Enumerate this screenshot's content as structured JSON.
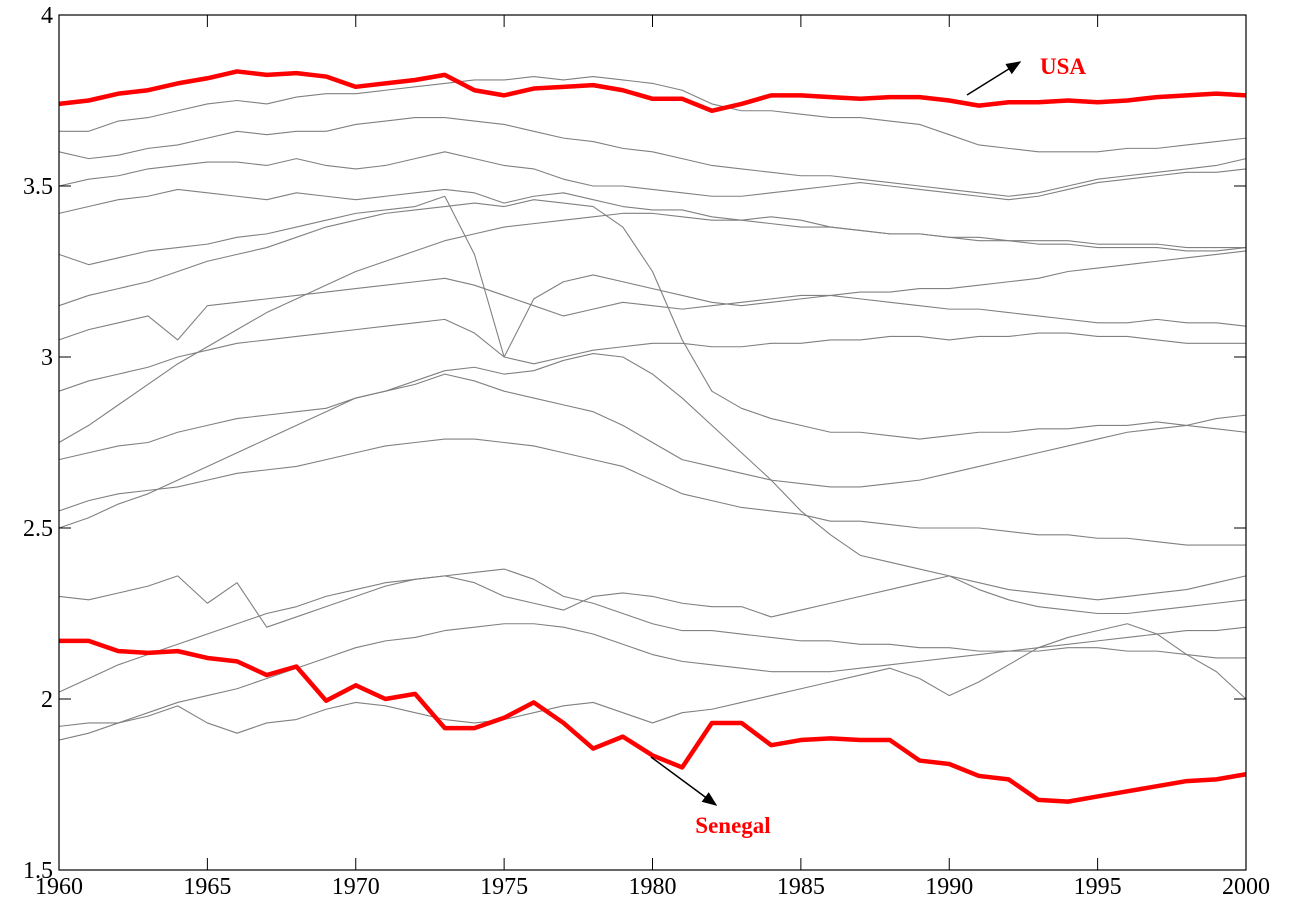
{
  "chart_data": {
    "type": "line",
    "x": [
      1960,
      1961,
      1962,
      1963,
      1964,
      1965,
      1966,
      1967,
      1968,
      1969,
      1970,
      1971,
      1972,
      1973,
      1974,
      1975,
      1976,
      1977,
      1978,
      1979,
      1980,
      1981,
      1982,
      1983,
      1984,
      1985,
      1986,
      1987,
      1988,
      1989,
      1990,
      1991,
      1992,
      1993,
      1994,
      1995,
      1996,
      1997,
      1998,
      1999,
      2000
    ],
    "xlim": [
      1960,
      2000
    ],
    "xticks": [
      1960,
      1965,
      1970,
      1975,
      1980,
      1985,
      1990,
      1995,
      2000
    ],
    "ylim": [
      1.5,
      4
    ],
    "yticks": [
      1.5,
      2,
      2.5,
      3,
      3.5,
      4
    ],
    "annotations": [
      "USA",
      "Senegal"
    ],
    "series": [
      {
        "color": "#808080",
        "values": [
          3.66,
          3.66,
          3.69,
          3.7,
          3.72,
          3.74,
          3.75,
          3.74,
          3.76,
          3.77,
          3.77,
          3.78,
          3.79,
          3.8,
          3.81,
          3.81,
          3.82,
          3.81,
          3.82,
          3.81,
          3.8,
          3.78,
          3.74,
          3.72,
          3.72,
          3.71,
          3.7,
          3.7,
          3.69,
          3.68,
          3.65,
          3.62,
          3.61,
          3.6,
          3.6,
          3.6,
          3.61,
          3.61,
          3.62,
          3.63,
          3.64
        ]
      },
      {
        "color": "#808080",
        "values": [
          3.6,
          3.58,
          3.59,
          3.61,
          3.62,
          3.64,
          3.66,
          3.65,
          3.66,
          3.66,
          3.68,
          3.69,
          3.7,
          3.7,
          3.69,
          3.68,
          3.66,
          3.64,
          3.63,
          3.61,
          3.6,
          3.58,
          3.56,
          3.55,
          3.54,
          3.53,
          3.53,
          3.52,
          3.51,
          3.5,
          3.49,
          3.48,
          3.47,
          3.48,
          3.5,
          3.52,
          3.53,
          3.54,
          3.55,
          3.56,
          3.58
        ]
      },
      {
        "color": "#808080",
        "values": [
          3.5,
          3.52,
          3.53,
          3.55,
          3.56,
          3.57,
          3.57,
          3.56,
          3.58,
          3.56,
          3.55,
          3.56,
          3.58,
          3.6,
          3.58,
          3.56,
          3.55,
          3.52,
          3.5,
          3.5,
          3.49,
          3.48,
          3.47,
          3.47,
          3.48,
          3.49,
          3.5,
          3.51,
          3.5,
          3.49,
          3.48,
          3.47,
          3.46,
          3.47,
          3.49,
          3.51,
          3.52,
          3.53,
          3.54,
          3.54,
          3.55
        ]
      },
      {
        "color": "#808080",
        "values": [
          3.42,
          3.44,
          3.46,
          3.47,
          3.49,
          3.48,
          3.47,
          3.46,
          3.48,
          3.47,
          3.46,
          3.47,
          3.48,
          3.49,
          3.48,
          3.45,
          3.47,
          3.48,
          3.46,
          3.44,
          3.43,
          3.43,
          3.41,
          3.4,
          3.41,
          3.4,
          3.38,
          3.37,
          3.36,
          3.36,
          3.35,
          3.34,
          3.34,
          3.33,
          3.33,
          3.32,
          3.32,
          3.32,
          3.31,
          3.31,
          3.32
        ]
      },
      {
        "color": "#808080",
        "values": [
          3.3,
          3.27,
          3.29,
          3.31,
          3.32,
          3.33,
          3.35,
          3.36,
          3.38,
          3.4,
          3.42,
          3.43,
          3.44,
          3.47,
          3.3,
          3.0,
          3.17,
          3.22,
          3.24,
          3.22,
          3.2,
          3.18,
          3.16,
          3.15,
          3.16,
          3.17,
          3.18,
          3.19,
          3.19,
          3.2,
          3.2,
          3.21,
          3.22,
          3.23,
          3.25,
          3.26,
          3.27,
          3.28,
          3.29,
          3.3,
          3.31
        ]
      },
      {
        "color": "#808080",
        "values": [
          3.15,
          3.18,
          3.2,
          3.22,
          3.25,
          3.28,
          3.3,
          3.32,
          3.35,
          3.38,
          3.4,
          3.42,
          3.43,
          3.44,
          3.45,
          3.44,
          3.46,
          3.45,
          3.44,
          3.38,
          3.25,
          3.05,
          2.9,
          2.85,
          2.82,
          2.8,
          2.78,
          2.78,
          2.77,
          2.76,
          2.77,
          2.78,
          2.78,
          2.79,
          2.79,
          2.8,
          2.8,
          2.81,
          2.8,
          2.79,
          2.78
        ]
      },
      {
        "color": "#808080",
        "values": [
          3.05,
          3.08,
          3.1,
          3.12,
          3.05,
          3.15,
          3.16,
          3.17,
          3.18,
          3.19,
          3.2,
          3.21,
          3.22,
          3.23,
          3.21,
          3.18,
          3.15,
          3.12,
          3.14,
          3.16,
          3.15,
          3.14,
          3.15,
          3.16,
          3.17,
          3.18,
          3.18,
          3.17,
          3.16,
          3.15,
          3.14,
          3.14,
          3.13,
          3.12,
          3.11,
          3.1,
          3.1,
          3.11,
          3.1,
          3.1,
          3.09
        ]
      },
      {
        "color": "#808080",
        "values": [
          2.75,
          2.8,
          2.86,
          2.92,
          2.98,
          3.03,
          3.08,
          3.13,
          3.17,
          3.21,
          3.25,
          3.28,
          3.31,
          3.34,
          3.36,
          3.38,
          3.39,
          3.4,
          3.41,
          3.42,
          3.42,
          3.41,
          3.4,
          3.4,
          3.39,
          3.38,
          3.38,
          3.37,
          3.36,
          3.36,
          3.35,
          3.35,
          3.34,
          3.34,
          3.34,
          3.33,
          3.33,
          3.33,
          3.32,
          3.32,
          3.32
        ]
      },
      {
        "color": "#808080",
        "values": [
          2.9,
          2.93,
          2.95,
          2.97,
          3.0,
          3.02,
          3.04,
          3.05,
          3.06,
          3.07,
          3.08,
          3.09,
          3.1,
          3.11,
          3.07,
          3.0,
          2.98,
          3.0,
          3.02,
          3.03,
          3.04,
          3.04,
          3.03,
          3.03,
          3.04,
          3.04,
          3.05,
          3.05,
          3.06,
          3.06,
          3.05,
          3.06,
          3.06,
          3.07,
          3.07,
          3.06,
          3.06,
          3.05,
          3.04,
          3.04,
          3.04
        ]
      },
      {
        "color": "#808080",
        "values": [
          2.7,
          2.72,
          2.74,
          2.75,
          2.78,
          2.8,
          2.82,
          2.83,
          2.84,
          2.85,
          2.88,
          2.9,
          2.92,
          2.95,
          2.93,
          2.9,
          2.88,
          2.86,
          2.84,
          2.8,
          2.75,
          2.7,
          2.68,
          2.66,
          2.64,
          2.63,
          2.62,
          2.62,
          2.63,
          2.64,
          2.66,
          2.68,
          2.7,
          2.72,
          2.74,
          2.76,
          2.78,
          2.79,
          2.8,
          2.82,
          2.83
        ]
      },
      {
        "color": "#808080",
        "values": [
          2.55,
          2.58,
          2.6,
          2.61,
          2.62,
          2.64,
          2.66,
          2.67,
          2.68,
          2.7,
          2.72,
          2.74,
          2.75,
          2.76,
          2.76,
          2.75,
          2.74,
          2.72,
          2.7,
          2.68,
          2.64,
          2.6,
          2.58,
          2.56,
          2.55,
          2.54,
          2.52,
          2.52,
          2.51,
          2.5,
          2.5,
          2.5,
          2.49,
          2.48,
          2.48,
          2.47,
          2.47,
          2.46,
          2.45,
          2.45,
          2.45
        ]
      },
      {
        "color": "#808080",
        "values": [
          2.3,
          2.29,
          2.31,
          2.33,
          2.36,
          2.28,
          2.34,
          2.21,
          2.24,
          2.27,
          2.3,
          2.33,
          2.35,
          2.36,
          2.34,
          2.3,
          2.28,
          2.26,
          2.3,
          2.31,
          2.3,
          2.28,
          2.27,
          2.27,
          2.24,
          2.26,
          2.28,
          2.3,
          2.32,
          2.34,
          2.36,
          2.34,
          2.32,
          2.31,
          2.3,
          2.29,
          2.3,
          2.31,
          2.32,
          2.34,
          2.36
        ]
      },
      {
        "color": "#808080",
        "values": [
          2.02,
          2.06,
          2.1,
          2.13,
          2.16,
          2.19,
          2.22,
          2.25,
          2.27,
          2.3,
          2.32,
          2.34,
          2.35,
          2.36,
          2.37,
          2.38,
          2.35,
          2.3,
          2.28,
          2.25,
          2.22,
          2.2,
          2.2,
          2.19,
          2.18,
          2.17,
          2.17,
          2.16,
          2.16,
          2.15,
          2.15,
          2.14,
          2.14,
          2.15,
          2.16,
          2.17,
          2.18,
          2.19,
          2.2,
          2.2,
          2.21
        ]
      },
      {
        "color": "#808080",
        "values": [
          1.88,
          1.9,
          1.93,
          1.96,
          1.99,
          2.01,
          2.03,
          2.06,
          2.09,
          2.12,
          2.15,
          2.17,
          2.18,
          2.2,
          2.21,
          2.22,
          2.22,
          2.21,
          2.19,
          2.16,
          2.13,
          2.11,
          2.1,
          2.09,
          2.08,
          2.08,
          2.08,
          2.09,
          2.1,
          2.11,
          2.12,
          2.13,
          2.14,
          2.14,
          2.15,
          2.15,
          2.14,
          2.14,
          2.13,
          2.12,
          2.12
        ]
      },
      {
        "color": "#808080",
        "values": [
          1.92,
          1.93,
          1.93,
          1.95,
          1.98,
          1.93,
          1.9,
          1.93,
          1.94,
          1.97,
          1.99,
          1.98,
          1.96,
          1.94,
          1.93,
          1.94,
          1.96,
          1.98,
          1.99,
          1.96,
          1.93,
          1.96,
          1.97,
          1.99,
          2.01,
          2.03,
          2.05,
          2.07,
          2.09,
          2.06,
          2.01,
          2.05,
          2.1,
          2.15,
          2.18,
          2.2,
          2.22,
          2.19,
          2.13,
          2.08,
          2.0
        ]
      },
      {
        "color": "#808080",
        "values": [
          2.5,
          2.53,
          2.57,
          2.6,
          2.64,
          2.68,
          2.72,
          2.76,
          2.8,
          2.84,
          2.88,
          2.9,
          2.93,
          2.96,
          2.97,
          2.95,
          2.96,
          2.99,
          3.01,
          3.0,
          2.95,
          2.88,
          2.8,
          2.72,
          2.64,
          2.55,
          2.48,
          2.42,
          2.4,
          2.38,
          2.36,
          2.32,
          2.29,
          2.27,
          2.26,
          2.25,
          2.25,
          2.26,
          2.27,
          2.28,
          2.29
        ]
      },
      {
        "color": "#ff0000",
        "values": [
          3.74,
          3.75,
          3.77,
          3.78,
          3.8,
          3.815,
          3.835,
          3.825,
          3.83,
          3.82,
          3.79,
          3.8,
          3.81,
          3.825,
          3.78,
          3.765,
          3.785,
          3.79,
          3.795,
          3.78,
          3.755,
          3.755,
          3.72,
          3.74,
          3.765,
          3.765,
          3.76,
          3.755,
          3.76,
          3.76,
          3.75,
          3.735,
          3.745,
          3.745,
          3.75,
          3.745,
          3.75,
          3.76,
          3.765,
          3.77,
          3.765
        ]
      },
      {
        "color": "#ff0000",
        "values": [
          2.17,
          2.17,
          2.14,
          2.135,
          2.14,
          2.12,
          2.11,
          2.07,
          2.095,
          1.995,
          2.04,
          2.0,
          2.015,
          1.915,
          1.915,
          1.945,
          1.99,
          1.93,
          1.855,
          1.89,
          1.835,
          1.8,
          1.93,
          1.93,
          1.865,
          1.88,
          1.885,
          1.88,
          1.88,
          1.82,
          1.81,
          1.775,
          1.765,
          1.705,
          1.7,
          1.715,
          1.73,
          1.745,
          1.76,
          1.765,
          1.78
        ]
      }
    ]
  }
}
